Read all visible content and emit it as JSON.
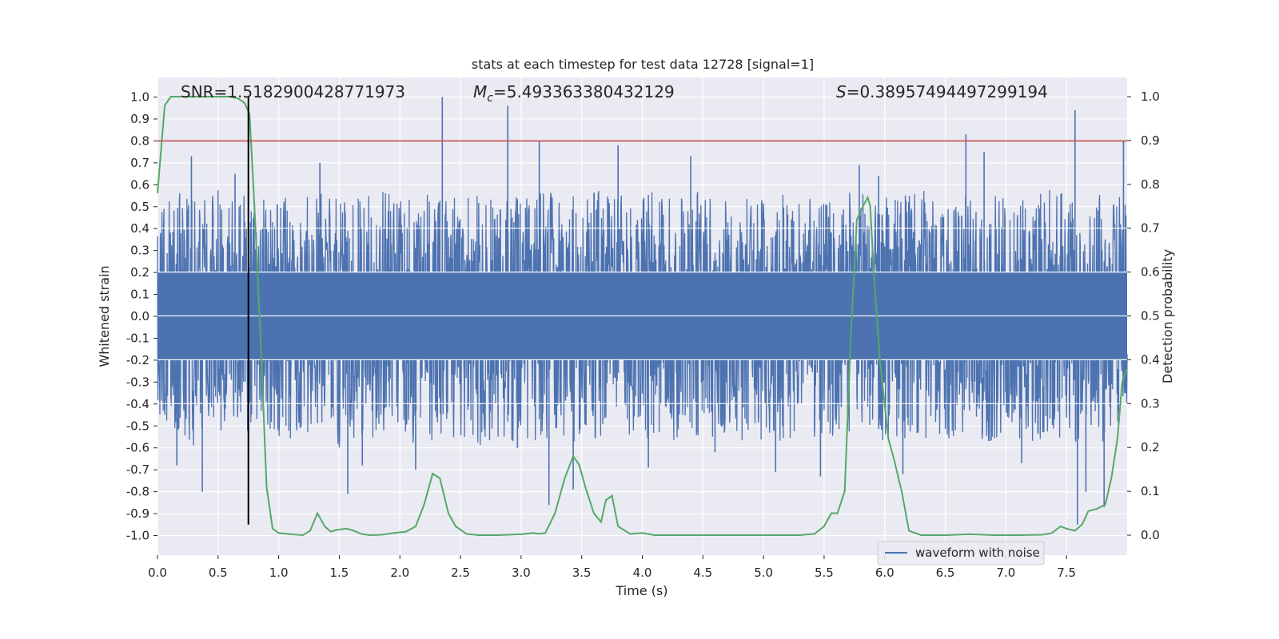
{
  "chart_data": {
    "type": "line",
    "title": "stats at each timestep for test data 12728 [signal=1]",
    "xlabel": "Time (s)",
    "ylabel": "Whitened strain",
    "y2label": "Detection probability",
    "xlim": [
      0,
      8.0
    ],
    "ylim": [
      -1.05,
      1.05
    ],
    "y2lim": [
      -0.05,
      1.05
    ],
    "xticks": [
      "0.0",
      "0.5",
      "1.0",
      "1.5",
      "2.0",
      "2.5",
      "3.0",
      "3.5",
      "4.0",
      "4.5",
      "5.0",
      "5.5",
      "6.0",
      "6.5",
      "7.0",
      "7.5"
    ],
    "yticks": [
      "1.0",
      "0.9",
      "0.8",
      "0.7",
      "0.6",
      "0.5",
      "0.4",
      "0.3",
      "0.2",
      "0.1",
      "0.0",
      "-0.1",
      "-0.2",
      "-0.3",
      "-0.4",
      "-0.5",
      "-0.6",
      "-0.7",
      "-0.8",
      "-0.9",
      "-1.0"
    ],
    "y2ticks": [
      "1.0",
      "0.9",
      "0.8",
      "0.7",
      "0.6",
      "0.5",
      "0.4",
      "0.3",
      "0.2",
      "0.1",
      "0.0"
    ],
    "annotations": {
      "snr": "SNR=1.5182900428771973",
      "mc_symbol": "M",
      "mc_sub": "c",
      "mc_value": "=5.493363380432129",
      "s_symbol": "S",
      "s_value": "=0.38957494497299194"
    },
    "grid": true,
    "legend": {
      "placement": "lower-center-right",
      "entries": [
        "waveform with noise"
      ]
    },
    "colors": {
      "waveform": "#4c72b0",
      "probability": "#55a868",
      "threshold": "#c44e52",
      "marker": "#000000",
      "background": "#eaeaf2"
    },
    "threshold_line": {
      "y": 0.8
    },
    "marker_line": {
      "x": 0.75,
      "y_from": -0.95,
      "y_to": 1.0
    },
    "series": [
      {
        "name": "waveform with noise",
        "axis": "left",
        "envelope_t": [
          0.0,
          0.1,
          0.2,
          0.3,
          0.4,
          0.5,
          0.6,
          0.7,
          0.8,
          0.9,
          1.0,
          1.1,
          1.2,
          1.3,
          1.4,
          1.5,
          1.6,
          1.7,
          1.8,
          1.9,
          2.0,
          2.1,
          2.2,
          2.3,
          2.4,
          2.5,
          2.6,
          2.7,
          2.8,
          2.9,
          3.0,
          3.1,
          3.2,
          3.3,
          3.4,
          3.5,
          3.6,
          3.7,
          3.8,
          3.9,
          4.0,
          4.1,
          4.2,
          4.3,
          4.4,
          4.5,
          4.6,
          4.7,
          4.8,
          4.9,
          5.0,
          5.1,
          5.2,
          5.3,
          5.4,
          5.5,
          5.6,
          5.7,
          5.8,
          5.9,
          6.0,
          6.1,
          6.2,
          6.3,
          6.4,
          6.5,
          6.6,
          6.7,
          6.8,
          6.9,
          7.0,
          7.1,
          7.2,
          7.3,
          7.4,
          7.5,
          7.6,
          7.7,
          7.8,
          7.9,
          8.0
        ],
        "envelope_max": [
          0.5,
          0.55,
          0.58,
          0.62,
          0.55,
          0.58,
          0.52,
          0.56,
          0.54,
          0.55,
          0.52,
          0.56,
          0.54,
          0.58,
          0.55,
          0.57,
          0.55,
          0.56,
          0.55,
          0.58,
          0.55,
          0.57,
          0.56,
          0.58,
          0.55,
          0.56,
          0.57,
          0.58,
          0.55,
          0.56,
          0.55,
          0.58,
          0.56,
          0.57,
          0.55,
          0.56,
          0.58,
          0.56,
          0.55,
          0.57,
          0.56,
          0.58,
          0.55,
          0.57,
          0.56,
          0.58,
          0.56,
          0.57,
          0.55,
          0.56,
          0.57,
          0.58,
          0.55,
          0.56,
          0.58,
          0.56,
          0.55,
          0.58,
          0.56,
          0.55,
          0.56,
          0.58,
          0.56,
          0.58,
          0.57,
          0.55,
          0.58,
          0.56,
          0.57,
          0.55,
          0.57,
          0.56,
          0.55,
          0.57,
          0.58,
          0.56,
          0.55,
          0.57,
          0.56,
          0.55,
          0.56
        ],
        "envelope_min": [
          -0.45,
          -0.5,
          -0.55,
          -0.6,
          -0.52,
          -0.55,
          -0.5,
          -0.54,
          -0.52,
          -0.55,
          -0.58,
          -0.56,
          -0.55,
          -0.57,
          -0.58,
          -0.6,
          -0.57,
          -0.58,
          -0.55,
          -0.57,
          -0.56,
          -0.6,
          -0.55,
          -0.58,
          -0.57,
          -0.56,
          -0.6,
          -0.58,
          -0.57,
          -0.58,
          -0.55,
          -0.57,
          -0.58,
          -0.56,
          -0.57,
          -0.58,
          -0.56,
          -0.57,
          -0.56,
          -0.58,
          -0.57,
          -0.56,
          -0.58,
          -0.57,
          -0.56,
          -0.57,
          -0.58,
          -0.56,
          -0.57,
          -0.58,
          -0.57,
          -0.58,
          -0.56,
          -0.57,
          -0.58,
          -0.56,
          -0.57,
          -0.55,
          -0.56,
          -0.58,
          -0.57,
          -0.58,
          -0.57,
          -0.56,
          -0.58,
          -0.57,
          -0.56,
          -0.57,
          -0.56,
          -0.58,
          -0.57,
          -0.56,
          -0.58,
          -0.57,
          -0.56,
          -0.58,
          -0.57,
          -0.56,
          -0.58,
          -0.55,
          -0.5
        ],
        "spikes": [
          {
            "t": 0.28,
            "y": 0.73
          },
          {
            "t": 0.37,
            "y": -0.8
          },
          {
            "t": 0.16,
            "y": -0.68
          },
          {
            "t": 0.64,
            "y": 0.65
          },
          {
            "t": 0.75,
            "y": -0.69
          },
          {
            "t": 1.34,
            "y": 0.7
          },
          {
            "t": 1.57,
            "y": -0.81
          },
          {
            "t": 1.69,
            "y": -0.68
          },
          {
            "t": 2.13,
            "y": -0.7
          },
          {
            "t": 2.35,
            "y": 1.0
          },
          {
            "t": 2.89,
            "y": 0.96
          },
          {
            "t": 3.15,
            "y": 0.8
          },
          {
            "t": 3.23,
            "y": -0.86
          },
          {
            "t": 3.43,
            "y": -0.79
          },
          {
            "t": 3.8,
            "y": 0.78
          },
          {
            "t": 4.05,
            "y": -0.69
          },
          {
            "t": 4.4,
            "y": 0.73
          },
          {
            "t": 5.1,
            "y": -0.71
          },
          {
            "t": 5.47,
            "y": -0.73
          },
          {
            "t": 5.79,
            "y": 0.69
          },
          {
            "t": 6.15,
            "y": -0.72
          },
          {
            "t": 6.67,
            "y": 0.83
          },
          {
            "t": 6.82,
            "y": 0.75
          },
          {
            "t": 7.13,
            "y": -0.67
          },
          {
            "t": 7.57,
            "y": 0.94
          },
          {
            "t": 7.59,
            "y": -0.95
          },
          {
            "t": 7.66,
            "y": -0.8
          },
          {
            "t": 7.81,
            "y": -0.87
          },
          {
            "t": 7.97,
            "y": 0.8
          },
          {
            "t": 2.97,
            "y": -0.6
          },
          {
            "t": 4.6,
            "y": -0.62
          },
          {
            "t": 5.95,
            "y": 0.64
          }
        ]
      },
      {
        "name": "",
        "axis": "right",
        "x": [
          0.0,
          0.06,
          0.11,
          0.2,
          0.3,
          0.4,
          0.5,
          0.6,
          0.67,
          0.72,
          0.76,
          0.8,
          0.85,
          0.9,
          0.95,
          1.0,
          1.1,
          1.2,
          1.26,
          1.32,
          1.38,
          1.43,
          1.48,
          1.56,
          1.62,
          1.68,
          1.75,
          1.85,
          1.95,
          2.05,
          2.13,
          2.2,
          2.27,
          2.33,
          2.4,
          2.46,
          2.55,
          2.65,
          2.8,
          3.0,
          3.1,
          3.15,
          3.2,
          3.28,
          3.36,
          3.43,
          3.48,
          3.53,
          3.6,
          3.66,
          3.7,
          3.75,
          3.8,
          3.9,
          4.0,
          4.1,
          4.3,
          4.6,
          4.9,
          5.1,
          5.3,
          5.42,
          5.5,
          5.56,
          5.61,
          5.67,
          5.72,
          5.77,
          5.82,
          5.86,
          5.88,
          5.91,
          5.96,
          6.03,
          6.07,
          6.14,
          6.2,
          6.3,
          6.5,
          6.7,
          6.9,
          7.1,
          7.3,
          7.38,
          7.45,
          7.5,
          7.57,
          7.63,
          7.68,
          7.75,
          7.82,
          7.87,
          7.92,
          7.96,
          8.0
        ],
        "y": [
          0.78,
          0.98,
          1.0,
          1.0,
          1.0,
          1.0,
          1.0,
          1.0,
          0.995,
          0.985,
          0.96,
          0.75,
          0.45,
          0.11,
          0.015,
          0.005,
          0.002,
          0.0,
          0.01,
          0.05,
          0.02,
          0.008,
          0.012,
          0.015,
          0.01,
          0.003,
          0.0,
          0.001,
          0.005,
          0.008,
          0.02,
          0.07,
          0.14,
          0.13,
          0.05,
          0.02,
          0.003,
          0.0,
          0.0,
          0.002,
          0.005,
          0.003,
          0.005,
          0.05,
          0.13,
          0.18,
          0.16,
          0.11,
          0.05,
          0.03,
          0.08,
          0.09,
          0.02,
          0.003,
          0.005,
          0.0,
          0.0,
          0.0,
          0.0,
          0.0,
          0.0,
          0.003,
          0.02,
          0.05,
          0.05,
          0.1,
          0.45,
          0.72,
          0.75,
          0.77,
          0.75,
          0.6,
          0.4,
          0.22,
          0.18,
          0.1,
          0.01,
          0.0,
          0.0,
          0.002,
          0.0,
          0.0,
          0.001,
          0.005,
          0.02,
          0.015,
          0.01,
          0.025,
          0.055,
          0.06,
          0.07,
          0.13,
          0.22,
          0.35,
          0.38
        ]
      }
    ]
  }
}
